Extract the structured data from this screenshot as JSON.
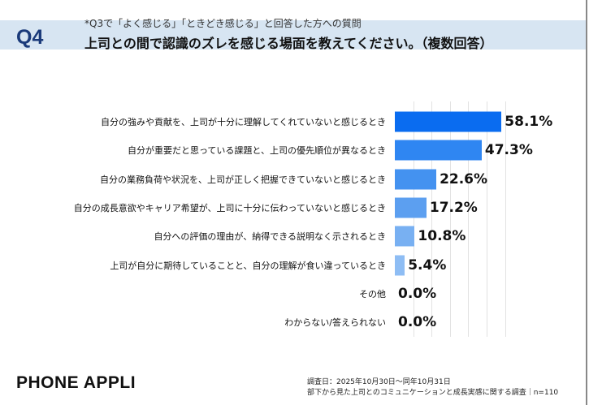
{
  "header": {
    "question_number": "Q4",
    "subtitle": "*Q3で「よく感じる」「ときどき感じる」と回答した方への質問",
    "title": "上司との間で認識のズレを感じる場面を教えてください。（複数回答）"
  },
  "chart_data": {
    "type": "bar",
    "orientation": "horizontal",
    "title": "上司との間で認識のズレを感じる場面を教えてください。（複数回答）",
    "categories": [
      "自分の強みや貢献を、上司が十分に理解してくれていないと感じるとき",
      "自分が重要だと思っている課題と、上司の優先順位が異なるとき",
      "自分の業務負荷や状況を、上司が正しく把握できていないと感じるとき",
      "自分の成長意欲やキャリア希望が、上司に十分に伝わっていないと感じるとき",
      "自分への評価の理由が、納得できる説明なく示されるとき",
      "上司が自分に期待していることと、自分の理解が食い違っているとき",
      "その他",
      "わからない/答えられない"
    ],
    "values": [
      58.1,
      47.3,
      22.6,
      17.2,
      10.8,
      5.4,
      0.0,
      0.0
    ],
    "value_labels": [
      "58.1%",
      "47.3%",
      "22.6%",
      "17.2%",
      "10.8%",
      "5.4%",
      "0.0%",
      "0.0%"
    ],
    "xlim": [
      0,
      60
    ],
    "grid": true,
    "colors": [
      "#0a6cf0",
      "#2f86f2",
      "#4492f0",
      "#5c9ff0",
      "#78b0f2",
      "#8ebdf4",
      "#a8ccf6",
      "#a8ccf6"
    ]
  },
  "footer": {
    "brand": "PHONE APPLI",
    "survey_date": "調査日：2025年10月30日～同年10月31日",
    "survey_name": "部下から見た上司とのコミュニケーションと成長実感に関する調査｜n=110"
  }
}
